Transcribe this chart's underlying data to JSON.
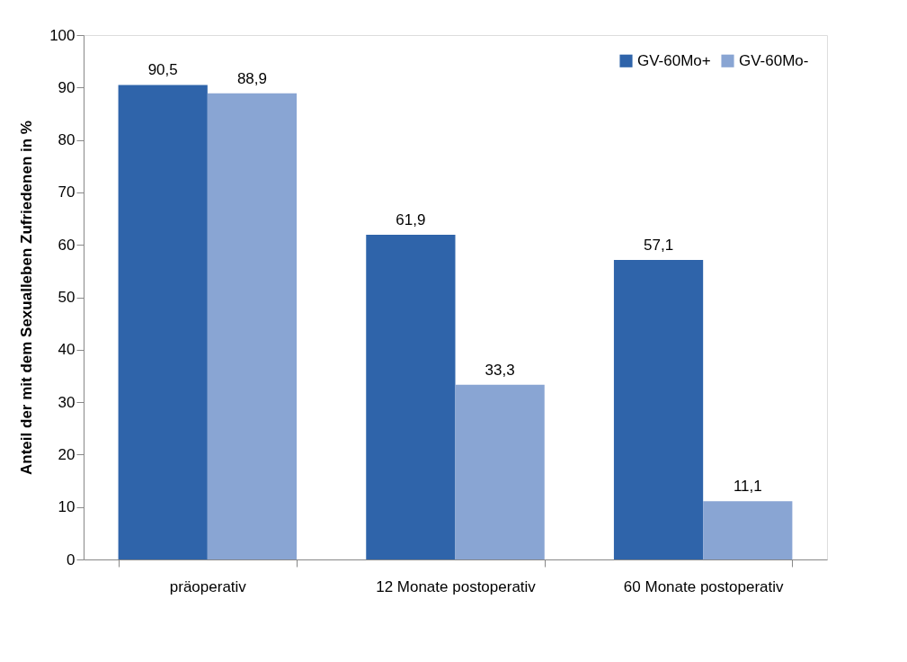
{
  "chart_data": {
    "type": "bar",
    "ylabel": "Anteil der mit dem Sexualleben Zufriedenen in %",
    "categories": [
      "präoperativ",
      "12 Monate postoperativ",
      "60 Monate postoperativ"
    ],
    "series": [
      {
        "name": "GV-60Mo+",
        "color": "#2f64aa",
        "values": [
          90.5,
          61.9,
          57.1
        ],
        "value_labels": [
          "90,5",
          "61,9",
          "57,1"
        ]
      },
      {
        "name": "GV-60Mo-",
        "color": "#89a5d3",
        "values": [
          88.9,
          33.3,
          11.1
        ],
        "value_labels": [
          "88,9",
          "33,3",
          "11,1"
        ]
      }
    ],
    "ylim": [
      0,
      100
    ],
    "yticks": [
      0,
      10,
      20,
      30,
      40,
      50,
      60,
      70,
      80,
      90,
      100
    ],
    "grid": false,
    "legend": "top right"
  }
}
